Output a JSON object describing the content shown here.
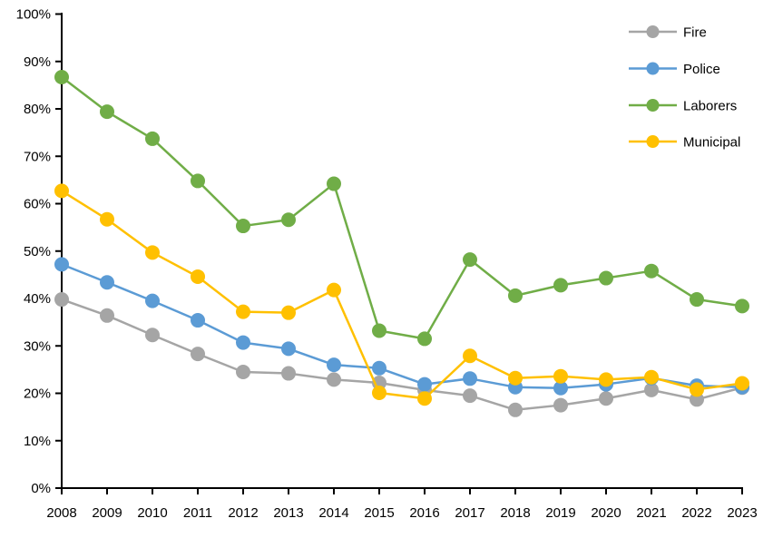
{
  "chart_data": {
    "type": "line",
    "title": "",
    "xlabel": "",
    "ylabel": "",
    "grid": false,
    "legend_position": "top-right",
    "ylim": [
      0,
      100
    ],
    "ytick_step": 10,
    "ytick_labels": [
      "0%",
      "10%",
      "20%",
      "30%",
      "40%",
      "50%",
      "60%",
      "70%",
      "80%",
      "90%",
      "100%"
    ],
    "categories": [
      "2008",
      "2009",
      "2010",
      "2011",
      "2012",
      "2013",
      "2014",
      "2015",
      "2016",
      "2017",
      "2018",
      "2019",
      "2020",
      "2021",
      "2022",
      "2023"
    ],
    "series": [
      {
        "name": "Fire",
        "color": "#A5A5A5",
        "values": [
          39.8,
          36.4,
          32.3,
          28.3,
          24.5,
          24.2,
          22.9,
          22.2,
          20.7,
          19.5,
          16.5,
          17.5,
          18.9,
          20.7,
          18.7,
          21.2
        ]
      },
      {
        "name": "Police",
        "color": "#5B9BD5",
        "values": [
          47.2,
          43.4,
          39.5,
          35.4,
          30.7,
          29.4,
          26.0,
          25.3,
          21.9,
          23.1,
          21.3,
          21.1,
          21.9,
          23.2,
          21.6,
          21.3
        ]
      },
      {
        "name": "Laborers",
        "color": "#70AD47",
        "values": [
          86.7,
          79.4,
          73.7,
          64.8,
          55.3,
          56.6,
          64.2,
          33.2,
          31.5,
          48.2,
          40.6,
          42.8,
          44.3,
          45.8,
          39.8,
          38.4
        ]
      },
      {
        "name": "Municipal",
        "color": "#FFC000",
        "values": [
          62.7,
          56.7,
          49.7,
          44.6,
          37.2,
          37.0,
          41.8,
          20.1,
          18.9,
          27.9,
          23.2,
          23.6,
          22.9,
          23.4,
          20.8,
          22.1
        ]
      }
    ],
    "axis_color": "#000000",
    "background_color": "#FFFFFF",
    "marker_radius": 8,
    "line_width": 2.5
  }
}
